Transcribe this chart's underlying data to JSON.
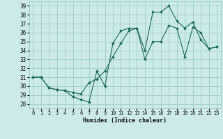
{
  "xlabel": "Humidex (Indice chaleur)",
  "bg_color": "#cceaea",
  "grid_color": "#a0cccc",
  "line_color": "#1a6b5a",
  "xlim": [
    -0.5,
    23.5
  ],
  "ylim": [
    27.5,
    39.5
  ],
  "xticks": [
    0,
    1,
    2,
    3,
    4,
    5,
    6,
    7,
    8,
    9,
    10,
    11,
    12,
    13,
    14,
    15,
    16,
    17,
    18,
    19,
    20,
    21,
    22,
    23
  ],
  "yticks": [
    28,
    29,
    30,
    31,
    32,
    33,
    34,
    35,
    36,
    37,
    38,
    39
  ],
  "line1_x": [
    0,
    1,
    2,
    3,
    4,
    5,
    6,
    7,
    8,
    9,
    10,
    11,
    12,
    13,
    14,
    15,
    16,
    17,
    18,
    19,
    20,
    21,
    22,
    23
  ],
  "line1_y": [
    31.0,
    31.0,
    29.8,
    29.6,
    29.5,
    28.8,
    28.5,
    28.2,
    31.7,
    30.0,
    34.8,
    36.2,
    36.5,
    36.5,
    34.0,
    38.3,
    38.3,
    39.0,
    37.3,
    36.5,
    37.2,
    35.2,
    34.2,
    34.4
  ],
  "line2_x": [
    0,
    1,
    2,
    3,
    4,
    5,
    6,
    7,
    8,
    9,
    10,
    11,
    12,
    13,
    14,
    15,
    16,
    17,
    18,
    19,
    20,
    21,
    22,
    23
  ],
  "line2_y": [
    31.0,
    31.0,
    29.8,
    29.6,
    29.5,
    29.3,
    29.1,
    30.4,
    30.8,
    31.7,
    33.3,
    34.8,
    36.2,
    36.5,
    33.0,
    35.0,
    35.0,
    36.8,
    36.5,
    33.3,
    36.6,
    36.0,
    34.2,
    34.4
  ]
}
